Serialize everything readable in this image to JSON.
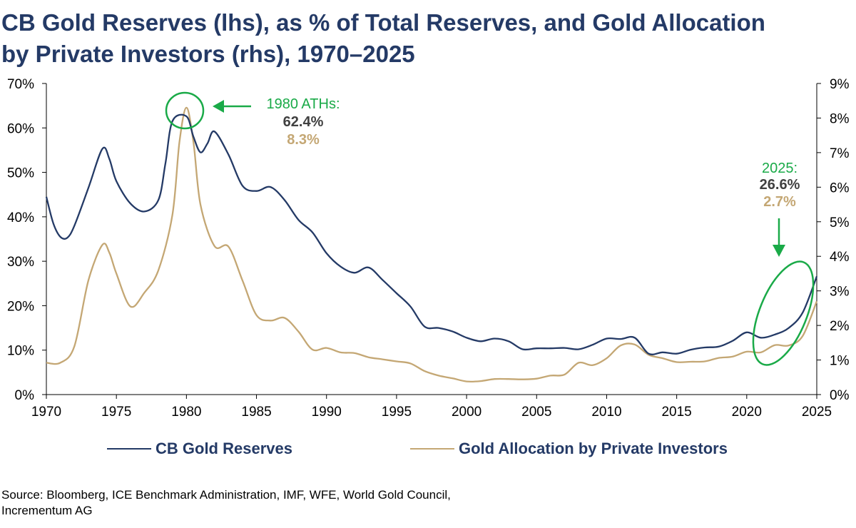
{
  "title_line1": "CB Gold Reserves (lhs), as % of Total Reserves, and Gold Allocation",
  "title_line2": "by Private Investors (rhs), 1970–2025",
  "source_line1": "Source: Bloomberg, ICE Benchmark Administration, IMF, WFE, World Gold Council,",
  "source_line2": "Incrementum AG",
  "colors": {
    "title": "#243a66",
    "cb_line": "#243a66",
    "private_line": "#c4a774",
    "highlight": "#1aaa48",
    "value_dark": "#404040",
    "value_gold": "#c4a774"
  },
  "chart_data": {
    "type": "line",
    "xlim": [
      1970,
      2025
    ],
    "x_ticks": [
      "1970",
      "1975",
      "1980",
      "1985",
      "1990",
      "1995",
      "2000",
      "2005",
      "2010",
      "2015",
      "2020",
      "2025"
    ],
    "y_left": {
      "lim": [
        0,
        70
      ],
      "ticks": [
        "0%",
        "10%",
        "20%",
        "30%",
        "40%",
        "50%",
        "60%",
        "70%"
      ]
    },
    "y_right": {
      "lim": [
        0,
        9
      ],
      "ticks": [
        "0%",
        "1%",
        "2%",
        "3%",
        "4%",
        "5%",
        "6%",
        "7%",
        "8%",
        "9%"
      ]
    },
    "legend_placement": "bottom",
    "series": [
      {
        "name": "CB Gold Reserves",
        "axis": "left",
        "points": [
          [
            1970,
            44.5
          ],
          [
            1970.5,
            38.5
          ],
          [
            1971,
            35.5
          ],
          [
            1971.5,
            35.3
          ],
          [
            1972,
            38
          ],
          [
            1973,
            46.5
          ],
          [
            1974,
            55.3
          ],
          [
            1974.5,
            53
          ],
          [
            1975,
            48
          ],
          [
            1976,
            43
          ],
          [
            1977,
            41.2
          ],
          [
            1978,
            43.8
          ],
          [
            1978.5,
            52
          ],
          [
            1979,
            61.5
          ],
          [
            1980,
            62.6
          ],
          [
            1980.5,
            58
          ],
          [
            1981,
            54.5
          ],
          [
            1981.5,
            56.5
          ],
          [
            1982,
            59.2
          ],
          [
            1983,
            54
          ],
          [
            1984,
            47
          ],
          [
            1985,
            45.8
          ],
          [
            1986,
            46.7
          ],
          [
            1987,
            43.8
          ],
          [
            1988,
            39.3
          ],
          [
            1989,
            36.5
          ],
          [
            1990,
            31.8
          ],
          [
            1991,
            28.8
          ],
          [
            1992,
            27.4
          ],
          [
            1993,
            28.6
          ],
          [
            1994,
            25.8
          ],
          [
            1995,
            22.8
          ],
          [
            1996,
            19.8
          ],
          [
            1997,
            15.3
          ],
          [
            1998,
            15
          ],
          [
            1999,
            14.2
          ],
          [
            2000,
            12.8
          ],
          [
            2001,
            12
          ],
          [
            2002,
            12.6
          ],
          [
            2003,
            12
          ],
          [
            2004,
            10.2
          ],
          [
            2005,
            10.4
          ],
          [
            2006,
            10.4
          ],
          [
            2007,
            10.5
          ],
          [
            2008,
            10.2
          ],
          [
            2009,
            11.2
          ],
          [
            2010,
            12.6
          ],
          [
            2011,
            12.5
          ],
          [
            2012,
            12.8
          ],
          [
            2013,
            9.2
          ],
          [
            2014,
            9.5
          ],
          [
            2015,
            9.2
          ],
          [
            2016,
            10.1
          ],
          [
            2017,
            10.6
          ],
          [
            2018,
            10.8
          ],
          [
            2019,
            12.1
          ],
          [
            2020,
            14
          ],
          [
            2021,
            12.8
          ],
          [
            2022,
            13.5
          ],
          [
            2023,
            15
          ],
          [
            2024,
            18.5
          ],
          [
            2025,
            26.6
          ]
        ]
      },
      {
        "name": "Gold Allocation by Private Investors",
        "axis": "right",
        "points": [
          [
            1970,
            0.92
          ],
          [
            1971,
            0.92
          ],
          [
            1972,
            1.4
          ],
          [
            1973,
            3.3
          ],
          [
            1974,
            4.33
          ],
          [
            1974.5,
            4.1
          ],
          [
            1975,
            3.5
          ],
          [
            1976,
            2.55
          ],
          [
            1977,
            2.95
          ],
          [
            1978,
            3.6
          ],
          [
            1979,
            5.2
          ],
          [
            1979.5,
            7.3
          ],
          [
            1980,
            8.3
          ],
          [
            1980.5,
            7.3
          ],
          [
            1981,
            5.5
          ],
          [
            1982,
            4.3
          ],
          [
            1983,
            4.28
          ],
          [
            1984,
            3.3
          ],
          [
            1985,
            2.3
          ],
          [
            1986,
            2.14
          ],
          [
            1987,
            2.22
          ],
          [
            1988,
            1.82
          ],
          [
            1989,
            1.3
          ],
          [
            1990,
            1.35
          ],
          [
            1991,
            1.22
          ],
          [
            1992,
            1.2
          ],
          [
            1993,
            1.08
          ],
          [
            1994,
            1.02
          ],
          [
            1995,
            0.96
          ],
          [
            1996,
            0.9
          ],
          [
            1997,
            0.68
          ],
          [
            1998,
            0.55
          ],
          [
            1999,
            0.47
          ],
          [
            2000,
            0.38
          ],
          [
            2001,
            0.39
          ],
          [
            2002,
            0.45
          ],
          [
            2003,
            0.45
          ],
          [
            2004,
            0.44
          ],
          [
            2005,
            0.46
          ],
          [
            2006,
            0.55
          ],
          [
            2007,
            0.58
          ],
          [
            2008,
            0.92
          ],
          [
            2009,
            0.85
          ],
          [
            2010,
            1.05
          ],
          [
            2011,
            1.42
          ],
          [
            2012,
            1.45
          ],
          [
            2013,
            1.15
          ],
          [
            2014,
            1.05
          ],
          [
            2015,
            0.94
          ],
          [
            2016,
            0.95
          ],
          [
            2017,
            0.96
          ],
          [
            2018,
            1.06
          ],
          [
            2019,
            1.1
          ],
          [
            2020,
            1.24
          ],
          [
            2021,
            1.22
          ],
          [
            2022,
            1.43
          ],
          [
            2023,
            1.42
          ],
          [
            2024,
            1.7
          ],
          [
            2025,
            2.7
          ]
        ]
      }
    ],
    "annotations": [
      {
        "label": "1980 ATHs:",
        "cb_value": "62.4%",
        "private_value": "8.3%",
        "x": 1980
      },
      {
        "label": "2025:",
        "cb_value": "26.6%",
        "private_value": "2.7%",
        "x": 2025
      }
    ]
  }
}
